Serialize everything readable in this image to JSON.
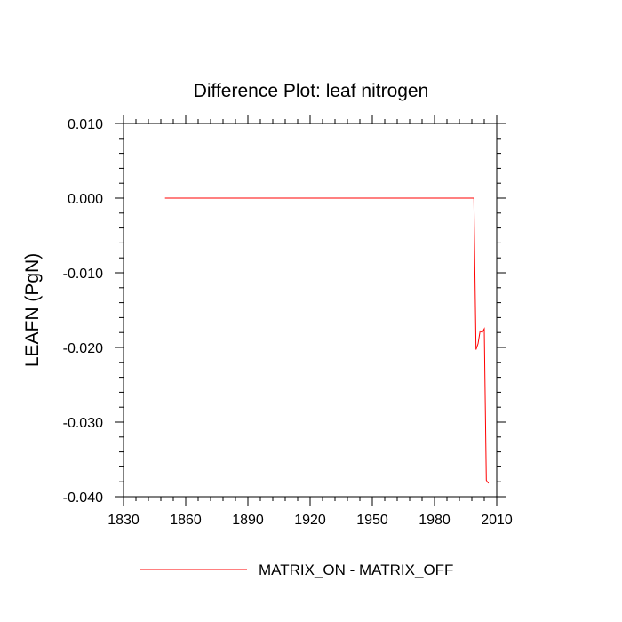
{
  "chart_data": {
    "type": "line",
    "title": "Difference Plot: leaf nitrogen",
    "xlabel": "",
    "ylabel": "LEAFN  (PgN)",
    "xlim": [
      1830,
      2010
    ],
    "ylim": [
      -0.04,
      0.01
    ],
    "x_ticks": [
      1830,
      1860,
      1890,
      1920,
      1950,
      1980,
      2010
    ],
    "y_ticks": [
      0.01,
      0.0,
      -0.01,
      -0.02,
      -0.03,
      -0.04
    ],
    "x_tick_labels": [
      "1830",
      "1860",
      "1890",
      "1920",
      "1950",
      "1980",
      "2010"
    ],
    "y_tick_labels": [
      "0.010",
      "0.000",
      "-0.010",
      "-0.020",
      "-0.030",
      "-0.040"
    ],
    "grid": false,
    "legend_position": "bottom-center",
    "series": [
      {
        "name": "MATRIX_ON - MATRIX_OFF",
        "color": "#ff0000",
        "x": [
          1850,
          1860,
          1870,
          1880,
          1890,
          1900,
          1910,
          1920,
          1930,
          1940,
          1950,
          1960,
          1970,
          1980,
          1990,
          1995,
          1999,
          2000,
          2001,
          2002,
          2003,
          2004,
          2005,
          2006
        ],
        "y": [
          0.0,
          0.0,
          0.0,
          0.0,
          0.0,
          0.0,
          0.0,
          0.0,
          0.0,
          0.0,
          0.0,
          0.0,
          0.0,
          0.0,
          0.0,
          0.0,
          0.0,
          -0.0203,
          -0.0195,
          -0.0178,
          -0.018,
          -0.0175,
          -0.0378,
          -0.0382
        ]
      }
    ]
  }
}
